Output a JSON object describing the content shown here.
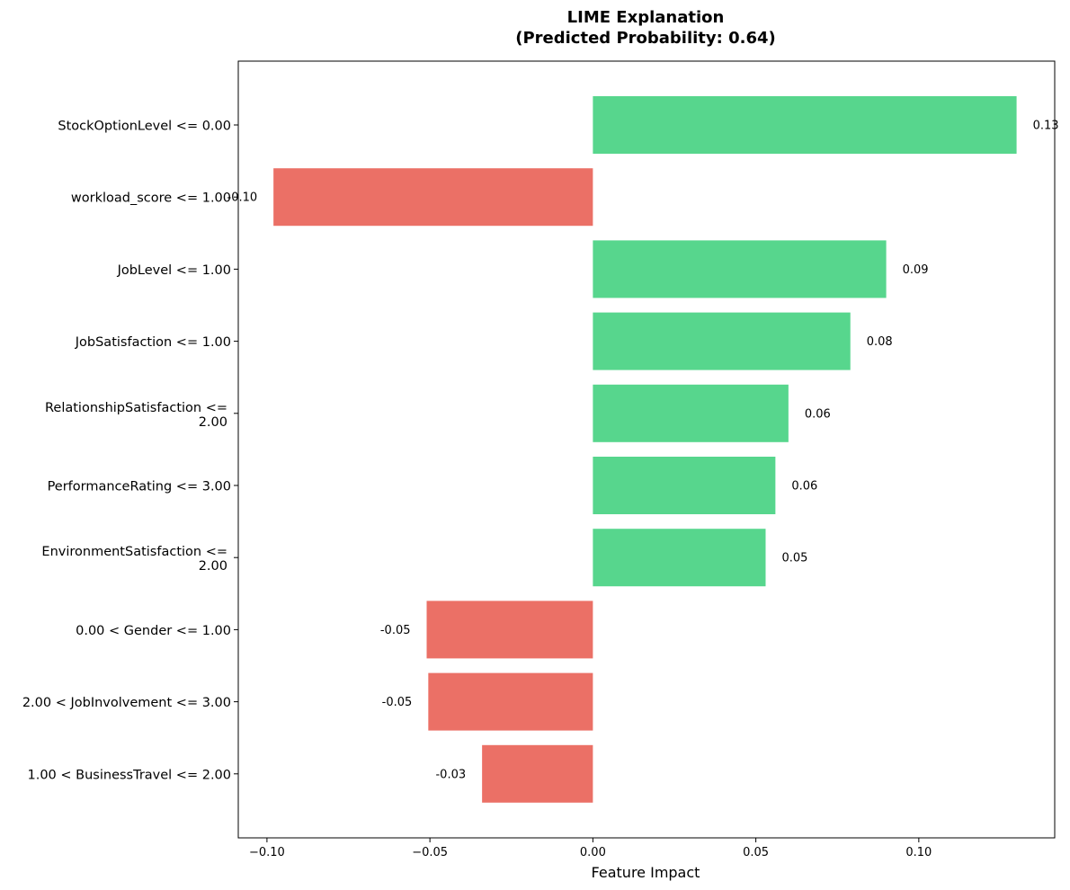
{
  "chart_data": {
    "type": "bar",
    "orientation": "horizontal",
    "title_lines": [
      "LIME Explanation",
      "(Predicted Probability: 0.64)"
    ],
    "xlabel": "Feature Impact",
    "ylabel": "",
    "categories": [
      [
        "StockOptionLevel <= 0.00"
      ],
      [
        "workload_score <= 1.00"
      ],
      [
        "JobLevel <= 1.00"
      ],
      [
        "JobSatisfaction <= 1.00"
      ],
      [
        "RelationshipSatisfaction <=",
        "2.00"
      ],
      [
        "PerformanceRating <= 3.00"
      ],
      [
        "EnvironmentSatisfaction <=",
        "2.00"
      ],
      [
        "0.00 < Gender <= 1.00"
      ],
      [
        "2.00 < JobInvolvement <= 3.00"
      ],
      [
        "1.00 < BusinessTravel <= 2.00"
      ]
    ],
    "values": [
      0.13,
      -0.098,
      0.09,
      0.079,
      0.06,
      0.056,
      0.053,
      -0.051,
      -0.0505,
      -0.034
    ],
    "value_labels": [
      "0.13",
      "-0.10",
      "0.09",
      "0.08",
      "0.06",
      "0.06",
      "0.05",
      "-0.05",
      "-0.05",
      "-0.03"
    ],
    "xlim": [
      -0.1088,
      0.1417
    ],
    "xticks": [
      -0.1,
      -0.05,
      0.0,
      0.05,
      0.1
    ],
    "xtick_labels": [
      "−0.10",
      "−0.05",
      "0.00",
      "0.05",
      "0.10"
    ],
    "colors": {
      "positive": "#57d68d",
      "negative": "#eb7066"
    },
    "grid": false,
    "legend": "none"
  }
}
